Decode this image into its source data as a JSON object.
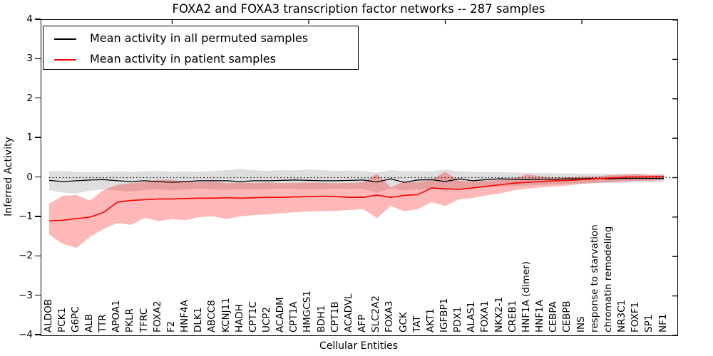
{
  "figure": {
    "title": "FOXA2 and FOXA3 transcription factor networks -- 287 samples",
    "xlabel": "Cellular Entities",
    "ylabel": "Inferred Activity"
  },
  "legend": {
    "position": "upper left",
    "entries": [
      {
        "label": "Mean activity in all permuted samples",
        "color": "#000000"
      },
      {
        "label": "Mean activity in patient samples",
        "color": "#ff0000"
      }
    ]
  },
  "chart_data": {
    "type": "line",
    "title": "FOXA2 and FOXA3 transcription factor networks -- 287 samples",
    "xlabel": "Cellular Entities",
    "ylabel": "Inferred Activity",
    "ylim": [
      -4,
      4
    ],
    "yticks": [
      4,
      3,
      2,
      1,
      0,
      -1,
      -2,
      -3,
      -4
    ],
    "ytick_labels": [
      "4",
      "3",
      "2",
      "1",
      "0",
      "−1",
      "−2",
      "−3",
      "−4"
    ],
    "grid": false,
    "zero_line": {
      "y": 0,
      "style": "dotted",
      "color": "#000000"
    },
    "top_axis_tick_indices": [
      9,
      19,
      29,
      39
    ],
    "legend_position": "upper left",
    "categories": [
      "ALDOB",
      "PCK1",
      "G6PC",
      "ALB",
      "TTR",
      "APOA1",
      "PKLR",
      "TFRC",
      "FOXA2",
      "F2",
      "HNF4A",
      "DLK1",
      "ABCC8",
      "KCNJ11",
      "HADH",
      "CPT1C",
      "UCP2",
      "ACADM",
      "CPT1A",
      "HMGCS1",
      "BDH1",
      "CPT1B",
      "ACADVL",
      "AFP",
      "SLC2A2",
      "FOXA3",
      "GCK",
      "TAT",
      "AKT1",
      "IGFBP1",
      "PDX1",
      "ALAS1",
      "FOXA1",
      "NKX2-1",
      "CREB1",
      "HNF1A (dimer)",
      "HNF1A",
      "CEBPA",
      "CEBPB",
      "INS",
      "response to starvation",
      "chromatin remodeling",
      "NR3C1",
      "FOXF1",
      "SP1",
      "NF1"
    ],
    "series": [
      {
        "name": "Mean activity in all permuted samples",
        "color": "#000000",
        "line_width": 1.3,
        "values": [
          -0.07,
          -0.1,
          -0.08,
          -0.06,
          -0.05,
          -0.08,
          -0.1,
          -0.08,
          -0.1,
          -0.12,
          -0.1,
          -0.08,
          -0.08,
          -0.08,
          -0.1,
          -0.08,
          -0.08,
          -0.07,
          -0.06,
          -0.07,
          -0.08,
          -0.08,
          -0.07,
          -0.06,
          -0.11,
          -0.03,
          -0.12,
          -0.06,
          -0.05,
          -0.1,
          -0.03,
          -0.08,
          -0.05,
          -0.03,
          -0.04,
          -0.05,
          -0.04,
          -0.04,
          -0.03,
          -0.03,
          -0.02,
          -0.03,
          -0.02,
          -0.02,
          -0.02,
          -0.02
        ],
        "band_fill": "rgba(0,0,0,0.13)",
        "band_upper": [
          0.16,
          0.17,
          0.15,
          0.14,
          0.15,
          0.16,
          0.15,
          0.16,
          0.17,
          0.15,
          0.16,
          0.15,
          0.17,
          0.19,
          0.22,
          0.19,
          0.17,
          0.19,
          0.18,
          0.21,
          0.19,
          0.17,
          0.18,
          0.17,
          0.13,
          0.19,
          0.16,
          0.17,
          0.16,
          0.2,
          0.16,
          0.15,
          0.15,
          0.14,
          0.13,
          0.12,
          0.12,
          0.11,
          0.11,
          0.1,
          0.1,
          0.1,
          0.09,
          0.09,
          0.08,
          0.08
        ],
        "band_lower": [
          -0.32,
          -0.38,
          -0.4,
          -0.33,
          -0.3,
          -0.33,
          -0.35,
          -0.31,
          -0.3,
          -0.32,
          -0.3,
          -0.28,
          -0.3,
          -0.31,
          -0.29,
          -0.3,
          -0.29,
          -0.28,
          -0.29,
          -0.3,
          -0.29,
          -0.28,
          -0.29,
          -0.28,
          -0.38,
          -0.28,
          -0.32,
          -0.3,
          -0.28,
          -0.34,
          -0.26,
          -0.27,
          -0.25,
          -0.23,
          -0.21,
          -0.2,
          -0.18,
          -0.17,
          -0.16,
          -0.15,
          -0.14,
          -0.14,
          -0.13,
          -0.12,
          -0.12,
          -0.11
        ]
      },
      {
        "name": "Mean activity in patient samples",
        "color": "#ff0000",
        "line_width": 1.6,
        "values": [
          -1.1,
          -1.08,
          -1.04,
          -1.0,
          -0.88,
          -0.62,
          -0.58,
          -0.56,
          -0.54,
          -0.54,
          -0.53,
          -0.52,
          -0.52,
          -0.51,
          -0.52,
          -0.51,
          -0.5,
          -0.5,
          -0.49,
          -0.48,
          -0.47,
          -0.48,
          -0.5,
          -0.5,
          -0.44,
          -0.5,
          -0.45,
          -0.43,
          -0.26,
          -0.28,
          -0.3,
          -0.26,
          -0.22,
          -0.18,
          -0.14,
          -0.12,
          -0.1,
          -0.08,
          -0.07,
          -0.05,
          -0.03,
          -0.01,
          0.01,
          0.02,
          0.02,
          0.03
        ],
        "band_fill": "rgba(255,0,0,0.28)",
        "band_upper": [
          -0.66,
          -0.46,
          -0.44,
          -0.58,
          -0.31,
          -0.18,
          -0.14,
          -0.12,
          -0.05,
          -0.06,
          -0.1,
          -0.12,
          -0.1,
          -0.14,
          -0.12,
          -0.14,
          -0.12,
          -0.14,
          -0.13,
          -0.12,
          -0.13,
          -0.14,
          -0.13,
          -0.12,
          0.1,
          -0.25,
          -0.1,
          -0.12,
          -0.05,
          0.15,
          -0.08,
          -0.1,
          -0.08,
          -0.06,
          -0.02,
          0.08,
          0.04,
          0.0,
          0.01,
          0.02,
          0.03,
          0.06,
          0.08,
          0.1,
          0.07,
          0.08
        ],
        "band_lower": [
          -1.45,
          -1.68,
          -1.78,
          -1.5,
          -1.3,
          -1.15,
          -1.2,
          -1.02,
          -1.1,
          -1.05,
          -1.08,
          -1.0,
          -0.98,
          -1.05,
          -0.98,
          -0.95,
          -0.93,
          -0.9,
          -0.88,
          -0.86,
          -0.85,
          -0.84,
          -0.82,
          -0.8,
          -1.03,
          -0.72,
          -0.85,
          -0.8,
          -0.62,
          -0.72,
          -0.55,
          -0.52,
          -0.45,
          -0.4,
          -0.32,
          -0.28,
          -0.25,
          -0.22,
          -0.2,
          -0.16,
          -0.13,
          -0.12,
          -0.1,
          -0.08,
          -0.08,
          -0.06
        ]
      }
    ]
  }
}
